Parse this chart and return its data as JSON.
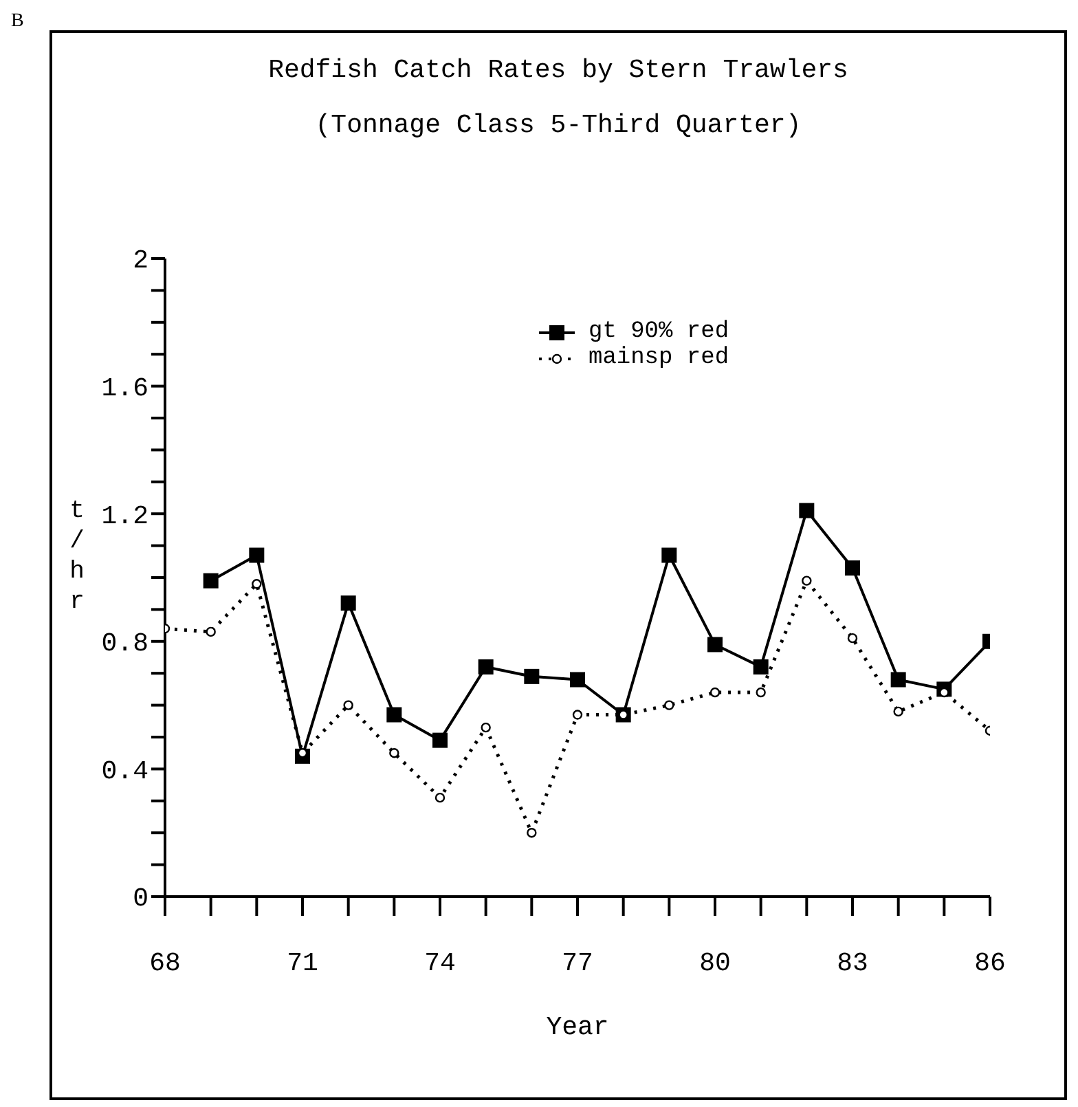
{
  "chart_data": {
    "type": "line",
    "title": "Redfish Catch Rates by Stern Trawlers",
    "subtitle": "(Tonnage Class 5-Third Quarter)",
    "xlabel": "Year",
    "ylabel": "t/hr",
    "annotations": [
      "B"
    ],
    "x": [
      68,
      69,
      70,
      71,
      72,
      73,
      74,
      75,
      76,
      77,
      78,
      79,
      80,
      81,
      82,
      83,
      84,
      85,
      86
    ],
    "series": [
      {
        "name": "gt 90% red",
        "color": "#000000",
        "marker": "square",
        "line_style": "solid",
        "values": [
          null,
          0.99,
          1.07,
          0.44,
          0.92,
          0.57,
          0.49,
          0.72,
          0.69,
          0.68,
          0.57,
          1.07,
          0.79,
          0.72,
          1.21,
          1.03,
          0.68,
          0.65,
          0.8
        ]
      },
      {
        "name": "mainsp red",
        "color": "#000000",
        "marker": "circle",
        "line_style": "dotted",
        "values": [
          0.84,
          0.83,
          0.98,
          0.45,
          0.6,
          0.45,
          0.31,
          0.53,
          0.2,
          0.57,
          0.57,
          0.6,
          0.64,
          0.64,
          0.99,
          0.81,
          0.58,
          0.64,
          0.52
        ]
      }
    ],
    "xlim": [
      68,
      86
    ],
    "xticks": [
      68,
      {
        "value": 69,
        "label": null
      },
      {
        "value": 70,
        "label": null
      },
      71,
      {
        "value": 72,
        "label": null
      },
      {
        "value": 73,
        "label": null
      },
      74,
      {
        "value": 75,
        "label": null
      },
      {
        "value": 76,
        "label": null
      },
      77,
      {
        "value": 78,
        "label": null
      },
      {
        "value": 79,
        "label": null
      },
      80,
      {
        "value": 81,
        "label": null
      },
      {
        "value": 82,
        "label": null
      },
      83,
      {
        "value": 84,
        "label": null
      },
      {
        "value": 85,
        "label": null
      },
      86
    ],
    "ylim": [
      0,
      2
    ],
    "yticks": [
      0,
      {
        "value": 0.1,
        "label": null
      },
      {
        "value": 0.2,
        "label": null
      },
      {
        "value": 0.3,
        "label": null
      },
      0.4,
      {
        "value": 0.5,
        "label": null
      },
      {
        "value": 0.6,
        "label": null
      },
      {
        "value": 0.7,
        "label": null
      },
      0.8,
      {
        "value": 0.9,
        "label": null
      },
      {
        "value": 1,
        "label": null
      },
      {
        "value": 1.1,
        "label": null
      },
      1.2,
      {
        "value": 1.3,
        "label": null
      },
      {
        "value": 1.4,
        "label": null
      },
      {
        "value": 1.5,
        "label": null
      },
      1.6,
      {
        "value": 1.7,
        "label": null
      },
      {
        "value": 1.8,
        "label": null
      },
      {
        "value": 1.9,
        "label": null
      },
      2
    ],
    "grid": false,
    "legend": "top"
  }
}
